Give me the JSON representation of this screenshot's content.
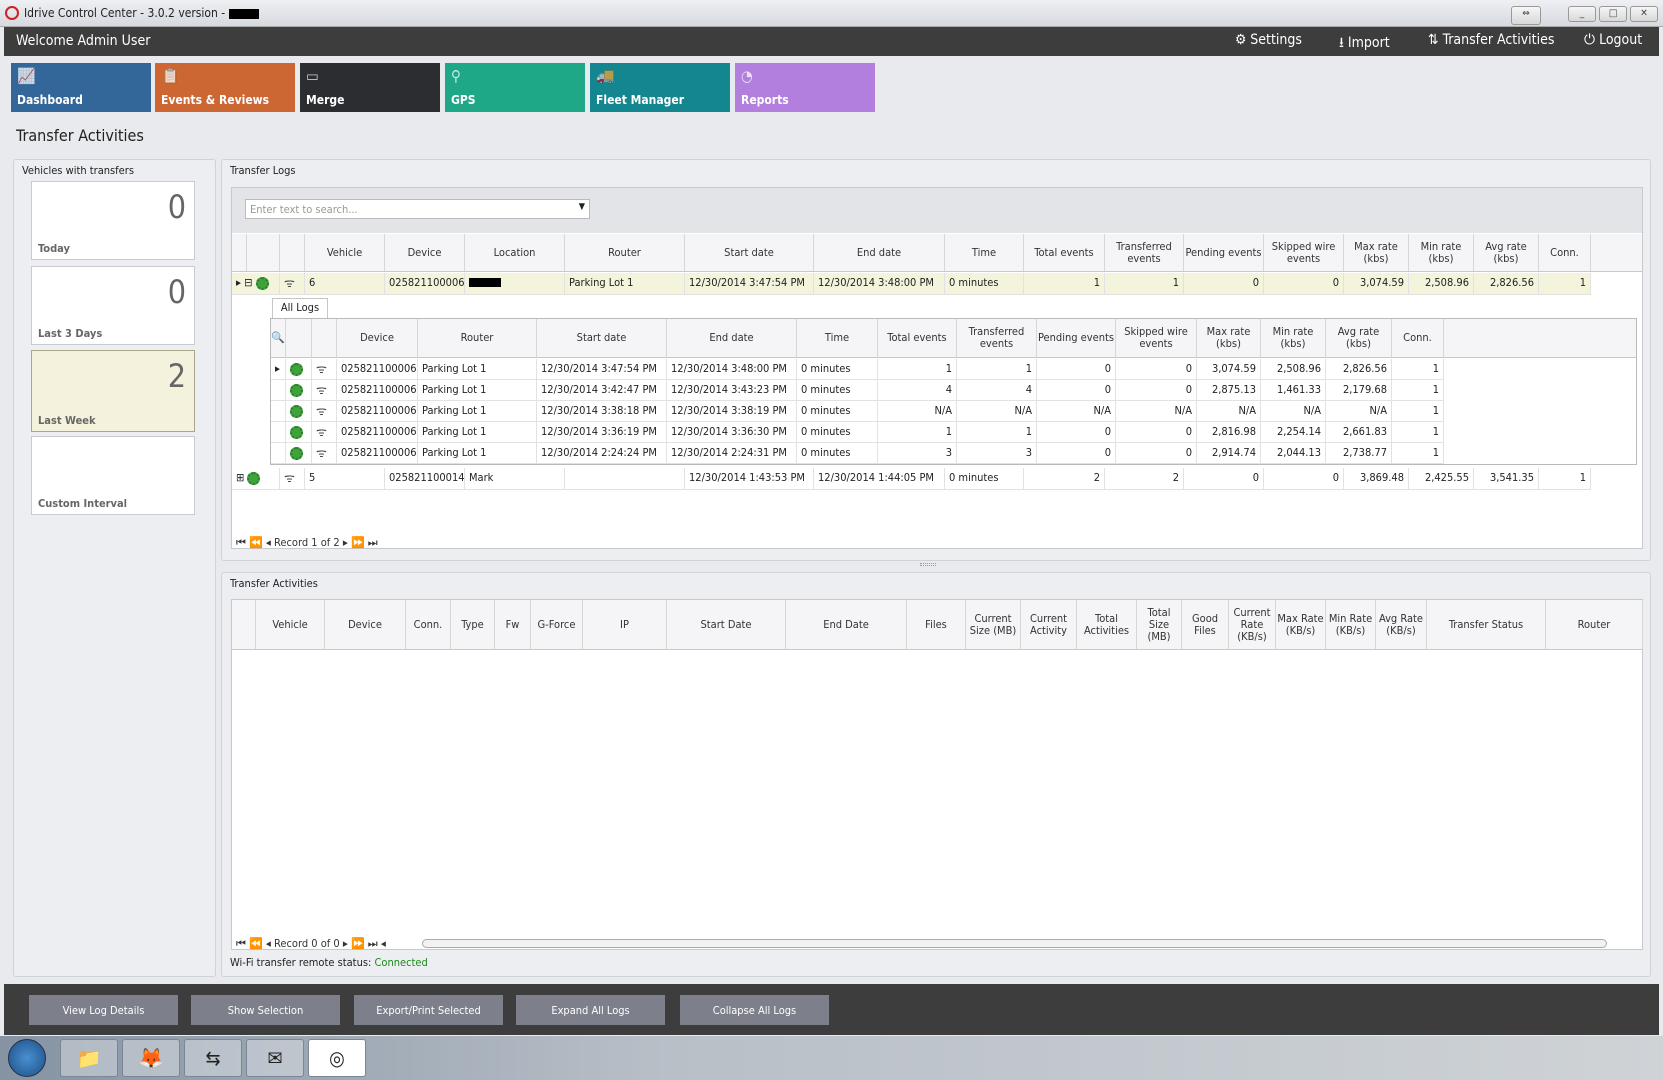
{
  "window": {
    "title": "Idrive Control Center - 3.0.2 version -"
  },
  "header": {
    "welcome": "Welcome Admin User",
    "settings": "Settings",
    "import": "Import",
    "transfer_activities": "Transfer Activities",
    "logout": "Logout"
  },
  "tiles": [
    {
      "label": "Dashboard",
      "color": "#336699",
      "icon": "chart-icon"
    },
    {
      "label": "Events & Reviews",
      "color": "#cc6633",
      "icon": "clipboard-icon"
    },
    {
      "label": "Merge",
      "color": "#2b2d31",
      "icon": "merge-icon"
    },
    {
      "label": "GPS",
      "color": "#1fa887",
      "icon": "map-pin-icon"
    },
    {
      "label": "Fleet Manager",
      "color": "#13868f",
      "icon": "vehicles-icon"
    },
    {
      "label": "Reports",
      "color": "#b27fde",
      "icon": "pie-icon"
    }
  ],
  "page_title": "Transfer Activities",
  "vehicles_panel": {
    "caption": "Vehicles with transfers",
    "cards": [
      {
        "count": "0",
        "label": "Today"
      },
      {
        "count": "0",
        "label": "Last 3 Days"
      },
      {
        "count": "2",
        "label": "Last Week",
        "selected": true
      },
      {
        "count": "",
        "label": "Custom Interval"
      }
    ]
  },
  "logs_panel": {
    "caption": "Transfer Logs",
    "search_placeholder": "Enter text to search...",
    "columns": [
      "Vehicle",
      "Device",
      "Location",
      "Router",
      "Start date",
      "End date",
      "Time",
      "Total events",
      "Transferred events",
      "Pending events",
      "Skipped wire events",
      "Max rate (kbs)",
      "Min rate (kbs)",
      "Avg rate (kbs)",
      "Conn."
    ],
    "rows": [
      [
        "6",
        "025821100006",
        "",
        "Parking Lot 1",
        "12/30/2014 3:47:54 PM",
        "12/30/2014 3:48:00 PM",
        "0 minutes",
        "1",
        "1",
        "0",
        "0",
        "3,074.59",
        "2,508.96",
        "2,826.56",
        "1"
      ],
      [
        "5",
        "025821100014",
        "Mark",
        "",
        "12/30/2014 1:43:53 PM",
        "12/30/2014 1:44:05 PM",
        "0 minutes",
        "2",
        "2",
        "0",
        "0",
        "3,869.48",
        "2,425.55",
        "3,541.35",
        "1"
      ]
    ],
    "detail_tab": "All Logs",
    "detail_columns": [
      "Device",
      "Router",
      "Start date",
      "End date",
      "Time",
      "Total events",
      "Transferred events",
      "Pending events",
      "Skipped wire events",
      "Max rate (kbs)",
      "Min rate (kbs)",
      "Avg rate (kbs)",
      "Conn."
    ],
    "detail_rows": [
      [
        "025821100006",
        "Parking Lot 1",
        "12/30/2014 3:47:54 PM",
        "12/30/2014 3:48:00 PM",
        "0 minutes",
        "1",
        "1",
        "0",
        "0",
        "3,074.59",
        "2,508.96",
        "2,826.56",
        "1"
      ],
      [
        "025821100006",
        "Parking Lot 1",
        "12/30/2014 3:42:47 PM",
        "12/30/2014 3:43:23 PM",
        "0 minutes",
        "4",
        "4",
        "0",
        "0",
        "2,875.13",
        "1,461.33",
        "2,179.68",
        "1"
      ],
      [
        "025821100006",
        "Parking Lot 1",
        "12/30/2014 3:38:18 PM",
        "12/30/2014 3:38:19 PM",
        "0 minutes",
        "N/A",
        "N/A",
        "N/A",
        "N/A",
        "N/A",
        "N/A",
        "N/A",
        "1"
      ],
      [
        "025821100006",
        "Parking Lot 1",
        "12/30/2014 3:36:19 PM",
        "12/30/2014 3:36:30 PM",
        "0 minutes",
        "1",
        "1",
        "0",
        "0",
        "2,816.98",
        "2,254.14",
        "2,661.83",
        "1"
      ],
      [
        "025821100006",
        "Parking Lot 1",
        "12/30/2014 2:24:24 PM",
        "12/30/2014 2:24:31 PM",
        "0 minutes",
        "3",
        "3",
        "0",
        "0",
        "2,914.74",
        "2,044.13",
        "2,738.77",
        "1"
      ]
    ],
    "pager": "Record 1 of 2"
  },
  "activities_panel": {
    "caption": "Transfer Activities",
    "columns": [
      "Vehicle",
      "Device",
      "Conn.",
      "Type",
      "Fw",
      "G-Force",
      "IP",
      "Start Date",
      "End Date",
      "Files",
      "Current Size (MB)",
      "Current Activity",
      "Total Activities",
      "Total Size (MB)",
      "Good Files",
      "Current Rate (KB/s)",
      "Max Rate (KB/s)",
      "Min Rate (KB/s)",
      "Avg Rate (KB/s)",
      "Transfer Status",
      "Router"
    ],
    "pager": "Record 0 of 0",
    "status_label": "Wi-Fi transfer remote status:",
    "status_value": "Connected",
    "status_color": "#1a8a1a"
  },
  "actions": [
    "View Log Details",
    "Show Selection",
    "Export/Print Selected",
    "Expand All Logs",
    "Collapse All Logs"
  ]
}
